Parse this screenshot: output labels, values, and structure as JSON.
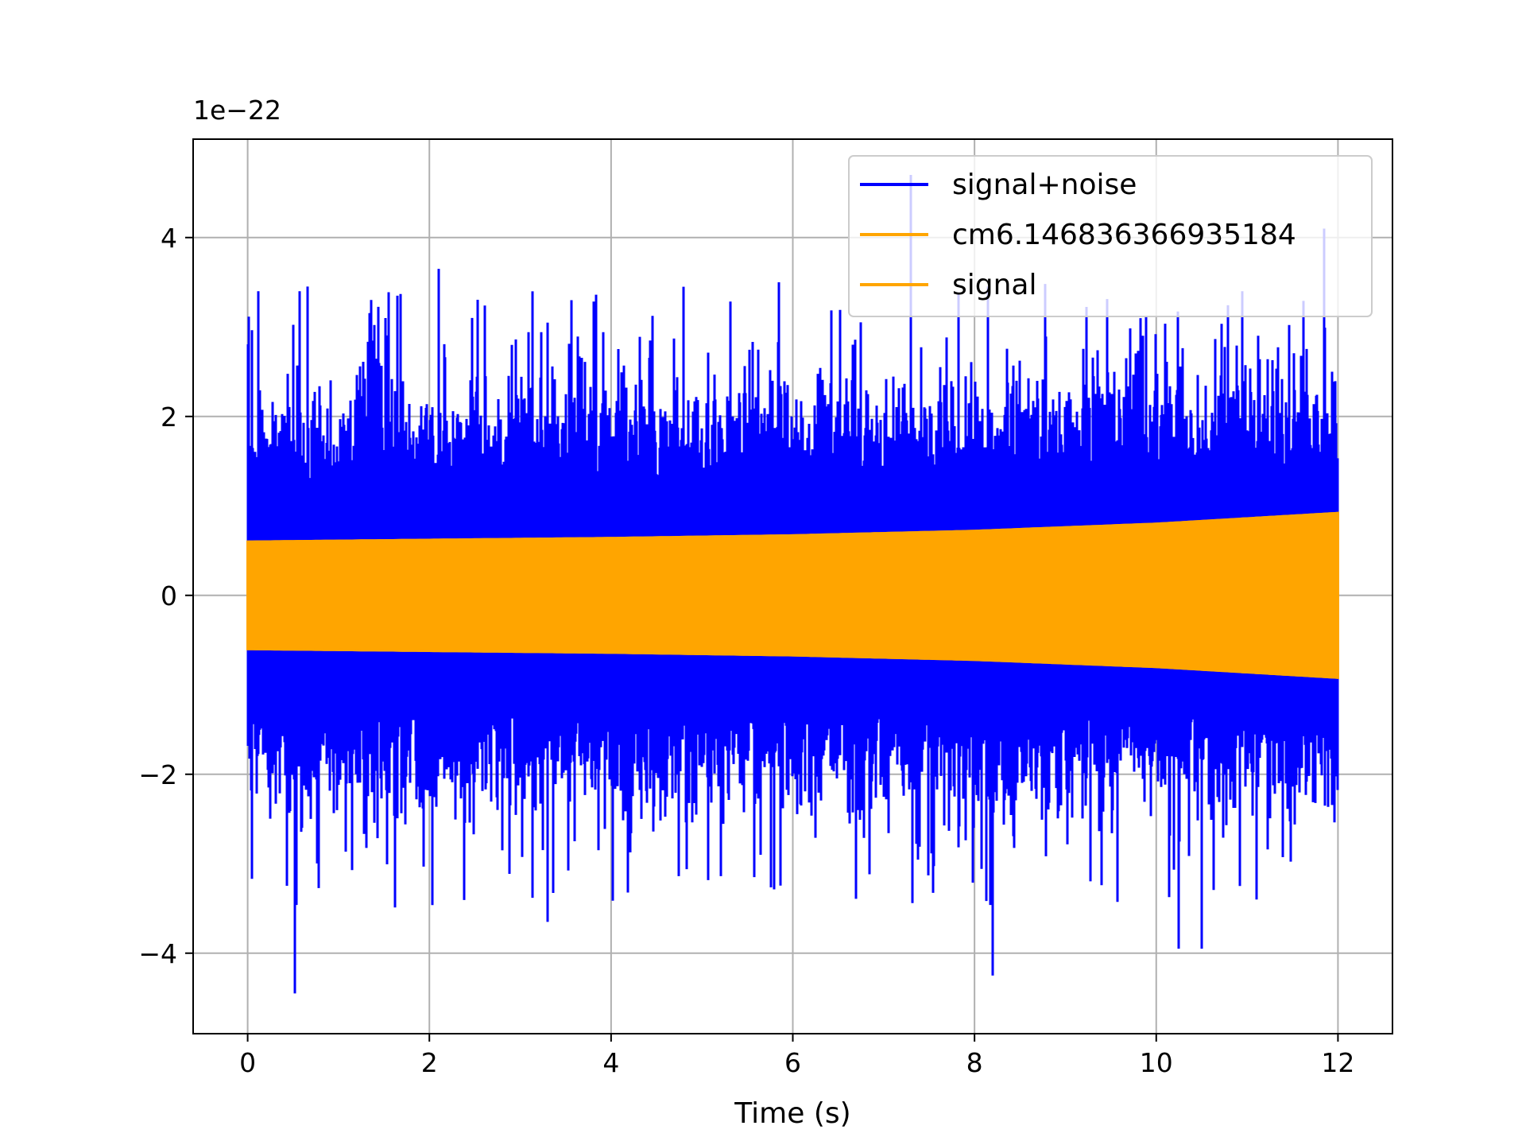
{
  "chart_data": {
    "type": "line",
    "title": "",
    "xlabel": "Time (s)",
    "ylabel": "",
    "offset_text": "1e−22",
    "xlim": [
      -0.6,
      12.6
    ],
    "ylim": [
      -4.9,
      5.1
    ],
    "y_scale_factor": 1e-22,
    "xticks": [
      0,
      2,
      4,
      6,
      8,
      10,
      12
    ],
    "xtick_labels": [
      "0",
      "2",
      "4",
      "6",
      "8",
      "10",
      "12"
    ],
    "yticks": [
      -4,
      -2,
      0,
      2,
      4
    ],
    "ytick_labels": [
      "−4",
      "−2",
      "0",
      "2",
      "4"
    ],
    "grid": true,
    "legend_position": "top-right",
    "series": [
      {
        "name": "signal+noise",
        "color": "#0000ff",
        "description": "noisy oscillation",
        "x_range": [
          0,
          12
        ],
        "typical_envelope": [
          -1.6,
          1.6
        ],
        "peaks": [
          {
            "x": 0.12,
            "y": 3.4
          },
          {
            "x": 0.57,
            "y": 3.4
          },
          {
            "x": 1.65,
            "y": 3.35
          },
          {
            "x": 2.1,
            "y": 3.65
          },
          {
            "x": 4.8,
            "y": 3.45
          },
          {
            "x": 5.85,
            "y": 3.5
          },
          {
            "x": 7.3,
            "y": 4.7
          },
          {
            "x": 10.95,
            "y": 3.4
          },
          {
            "x": 11.85,
            "y": 4.1
          },
          {
            "x": 0.52,
            "y": -4.45
          },
          {
            "x": 3.3,
            "y": -3.65
          },
          {
            "x": 8.2,
            "y": -4.25
          },
          {
            "x": 10.25,
            "y": -3.95
          },
          {
            "x": 10.5,
            "y": -3.95
          },
          {
            "x": 11.1,
            "y": -3.4
          }
        ]
      },
      {
        "name": "cm6.146836366935184",
        "color": "#ffa500",
        "description": "growing sinusoid",
        "envelope_x": [
          0,
          2,
          4,
          6,
          8,
          10,
          12
        ],
        "envelope_amplitude": [
          0.6,
          0.62,
          0.64,
          0.67,
          0.72,
          0.8,
          0.92
        ]
      },
      {
        "name": "signal",
        "color": "#ffa500",
        "description": "same as cm series",
        "envelope_x": [
          0,
          2,
          4,
          6,
          8,
          10,
          12
        ],
        "envelope_amplitude": [
          0.6,
          0.62,
          0.64,
          0.67,
          0.72,
          0.8,
          0.92
        ]
      }
    ]
  }
}
